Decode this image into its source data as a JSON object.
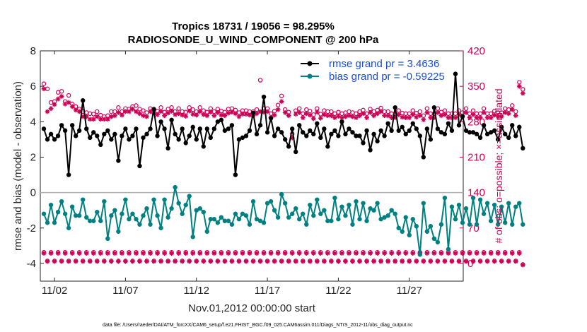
{
  "colors": {
    "rmse": "#000000",
    "bias": "#008080",
    "obs": "#cc0055",
    "legend_text": "#1a4fd6",
    "zero": "#b0b0b0"
  },
  "chart_data": {
    "type": "line",
    "title": "Tropics 18731 / 19056 = 98.295%",
    "subtitle": "RADIOSONDE_U_WIND_COMPONENT @ 200 hPa",
    "xlabel": "Nov.01,2012 00:00:00 start",
    "ylabel": "rmse and bias (model - observation)",
    "ylabel_right": "# of obs: o=possible; ×=assimilated",
    "footer": "data file: /Users/raeder/DAI/ATM_forcXX/CAM6_setup/f.e21.FHIST_BGC.f09_025.CAM6assim.011/Diags_NTrS_2012-11/obs_diag_output.nc",
    "xlim": [
      1,
      30.8
    ],
    "ylim": [
      -5,
      8
    ],
    "ylim_right": [
      -35,
      420
    ],
    "x_ticks": [
      {
        "value": 2,
        "label": "11/02"
      },
      {
        "value": 7,
        "label": "11/07"
      },
      {
        "value": 12,
        "label": "11/12"
      },
      {
        "value": 17,
        "label": "11/17"
      },
      {
        "value": 22,
        "label": "11/22"
      },
      {
        "value": 27,
        "label": "11/27"
      }
    ],
    "y_ticks": [
      8,
      6,
      4,
      2,
      0,
      -2,
      -4
    ],
    "y_ticks_right": [
      420,
      350,
      280,
      210,
      140,
      70,
      0
    ],
    "x_start": 1.25,
    "x_step": 0.25,
    "legend": [
      {
        "name": "rmse",
        "label": "rmse grand pr = 3.4636"
      },
      {
        "name": "bias",
        "label": "bias grand pr = -0.59225"
      }
    ],
    "series": [
      {
        "name": "rmse",
        "values": [
          3.6,
          3.0,
          3.3,
          3.0,
          3.2,
          3.8,
          3.5,
          1.0,
          3.8,
          3.2,
          3.5,
          5.2,
          3.6,
          3.1,
          3.4,
          3.2,
          2.7,
          3.3,
          3.5,
          3.0,
          3.3,
          1.8,
          3.2,
          3.6,
          3.0,
          3.2,
          3.6,
          1.5,
          3.1,
          3.3,
          3.6,
          4.7,
          3.2,
          4.0,
          3.6,
          2.5,
          4.1,
          3.3,
          3.0,
          3.6,
          2.8,
          3.2,
          3.7,
          3.0,
          3.6,
          2.6,
          3.6,
          3.1,
          3.6,
          4.0,
          4.1,
          3.5,
          3.6,
          3.8,
          1.0,
          3.0,
          3.1,
          3.2,
          3.5,
          4.5,
          3.3,
          3.8,
          5.4,
          3.4,
          4.2,
          3.2,
          3.6,
          3.4,
          3.0,
          2.6,
          3.6,
          2.3,
          3.8,
          3.4,
          3.2,
          3.5,
          3.3,
          3.9,
          3.1,
          3.6,
          2.6,
          3.3,
          3.5,
          3.2,
          4.0,
          3.3,
          3.6,
          3.4,
          3.2,
          3.2,
          2.8,
          3.5,
          2.4,
          3.3,
          2.9,
          3.5,
          3.2,
          3.9,
          3.5,
          4.8,
          3.5,
          3.7,
          3.3,
          3.5,
          3.9,
          3.6,
          3.2,
          2.0,
          3.6,
          3.0,
          4.8,
          3.6,
          3.4,
          3.3,
          3.9,
          3.5,
          6.7,
          3.8,
          4.3,
          3.5,
          3.4,
          3.4,
          3.3,
          3.1,
          3.8,
          3.3,
          3.4,
          3.5,
          3.0,
          3.7,
          3.3,
          3.1,
          3.8,
          3.2,
          3.7,
          2.5
        ]
      },
      {
        "name": "bias",
        "values": [
          -1.2,
          -1.7,
          -0.7,
          -1.7,
          -1.1,
          -0.5,
          -1.2,
          -2.0,
          -0.8,
          -1.3,
          -1.3,
          -0.4,
          -1.4,
          -1.6,
          -1.6,
          -1.1,
          -1.6,
          -0.5,
          -2.6,
          -1.3,
          -1.0,
          -2.2,
          -1.2,
          -0.4,
          -1.5,
          -1.2,
          -1.5,
          -1.8,
          -1.3,
          -0.9,
          -1.8,
          -0.4,
          -1.3,
          -2.0,
          -0.4,
          -1.4,
          -0.9,
          0.3,
          -0.6,
          -1.2,
          -0.7,
          -0.2,
          -2.5,
          -1.0,
          -0.9,
          -1.1,
          -2.2,
          -1.5,
          -1.5,
          -1.7,
          -1.4,
          -1.6,
          -1.6,
          -1.8,
          -1.2,
          -1.5,
          -1.2,
          -1.3,
          -1.8,
          -0.5,
          -1.5,
          -1.6,
          -1.7,
          -0.6,
          -0.5,
          -1.0,
          -1.4,
          -0.1,
          -0.6,
          -1.4,
          -1.2,
          -0.9,
          -1.5,
          -1.2,
          -1.8,
          -0.7,
          -1.3,
          -0.4,
          -1.2,
          -1.0,
          -1.6,
          -1.6,
          -0.3,
          -1.5,
          -0.8,
          -1.3,
          -0.7,
          -1.8,
          -0.5,
          -1.5,
          -0.6,
          -1.6,
          -0.9,
          -1.0,
          -0.6,
          -1.5,
          -1.4,
          -1.3,
          -1.0,
          -1.2,
          -2.0,
          -2.2,
          -1.4,
          -2.4,
          -1.5,
          -1.9,
          -3.5,
          -0.6,
          -2.2,
          -1.9,
          -2.6,
          -2.8,
          -1.8,
          -0.3,
          -3.2,
          -0.8,
          -1.5,
          -0.7,
          -1.7,
          -0.9,
          -1.8,
          -0.3,
          -1.8,
          -0.4,
          -1.2,
          -0.6,
          -1.6,
          -0.7,
          -1.8,
          -0.8,
          -1.7,
          -0.6,
          -1.8,
          -0.8,
          -0.6,
          -1.8
        ]
      },
      {
        "name": "obs_possible",
        "values": [
          355,
          345,
          318,
          320,
          338,
          340,
          320,
          332,
          315,
          310,
          305,
          300,
          298,
          296,
          295,
          300,
          293,
          290,
          292,
          300,
          300,
          308,
          300,
          306,
          305,
          310,
          312,
          305,
          302,
          298,
          306,
          305,
          301,
          308,
          299,
          305,
          308,
          300,
          306,
          300,
          299,
          308,
          304,
          300,
          308,
          302,
          299,
          306,
          300,
          305,
          301,
          299,
          305,
          306,
          303,
          298,
          302,
          302,
          300,
          300,
          304,
          362,
          307,
          306,
          296,
          301,
          313,
          331,
          304,
          299,
          256,
          302,
          306,
          296,
          304,
          301,
          294,
          306,
          295,
          302,
          300,
          300,
          296,
          299,
          296,
          298,
          300,
          298,
          296,
          300,
          303,
          296,
          305,
          300,
          303,
          307,
          300,
          300,
          296,
          296,
          302,
          297,
          296,
          296,
          302,
          297,
          300,
          292,
          306,
          296,
          296,
          306,
          299,
          302,
          296,
          296,
          296,
          302,
          298,
          306,
          296,
          302,
          296,
          296,
          306,
          296,
          296,
          301,
          298,
          298,
          306,
          304,
          312,
          300,
          358,
          344
        ]
      },
      {
        "name": "obs_assimilated",
        "values": [
          345,
          300,
          306,
          314,
          325,
          330,
          315,
          318,
          310,
          303,
          300,
          290,
          290,
          285,
          285,
          290,
          285,
          285,
          285,
          290,
          292,
          298,
          293,
          300,
          300,
          305,
          300,
          296,
          292,
          290,
          300,
          297,
          294,
          300,
          292,
          297,
          301,
          294,
          296,
          293,
          291,
          301,
          295,
          293,
          300,
          294,
          292,
          299,
          292,
          298,
          293,
          292,
          297,
          299,
          296,
          290,
          295,
          295,
          293,
          292,
          296,
          300,
          299,
          300,
          288,
          293,
          304,
          320,
          298,
          292,
          248,
          295,
          298,
          288,
          296,
          293,
          286,
          299,
          287,
          294,
          292,
          292,
          288,
          291,
          288,
          290,
          292,
          290,
          288,
          292,
          296,
          288,
          298,
          292,
          296,
          300,
          292,
          292,
          288,
          288,
          294,
          289,
          288,
          288,
          294,
          289,
          292,
          284,
          298,
          288,
          288,
          298,
          292,
          294,
          288,
          288,
          288,
          294,
          290,
          298,
          288,
          294,
          288,
          288,
          298,
          288,
          288,
          293,
          290,
          290,
          298,
          296,
          304,
          292,
          350,
          336
        ]
      },
      {
        "name": "obs_low_possible",
        "values": [
          22,
          5,
          22,
          5,
          22,
          5,
          22,
          5,
          22,
          5,
          22,
          5,
          22,
          5,
          22,
          5,
          22,
          5,
          22,
          5,
          22,
          5,
          22,
          5,
          22,
          5,
          22,
          5,
          22,
          5,
          22,
          5,
          22,
          5,
          22,
          5,
          22,
          5,
          22,
          5,
          22,
          5,
          22,
          5,
          22,
          5,
          22,
          5,
          22,
          5,
          22,
          5,
          22,
          5,
          22,
          5,
          22,
          5,
          22,
          5,
          22,
          5,
          22,
          5,
          22,
          5,
          22,
          5,
          22,
          5,
          22,
          5,
          22,
          5,
          22,
          5,
          22,
          5,
          22,
          5,
          22,
          5,
          22,
          5,
          22,
          5,
          22,
          5,
          22,
          5,
          22,
          5,
          22,
          5,
          22,
          5,
          22,
          5,
          22,
          5,
          22,
          5,
          22,
          5,
          22,
          5,
          22,
          5,
          22,
          5,
          22,
          5,
          22,
          5,
          22,
          5,
          22,
          5,
          22,
          5,
          22,
          5,
          22,
          5,
          22,
          5,
          22,
          5,
          22,
          5,
          22,
          5,
          22,
          5,
          22,
          -2
        ]
      },
      {
        "name": "obs_low_assimilated",
        "values": [
          20,
          4,
          20,
          4,
          20,
          4,
          20,
          4,
          20,
          4,
          20,
          4,
          20,
          4,
          20,
          4,
          20,
          4,
          20,
          4,
          20,
          4,
          20,
          4,
          20,
          4,
          20,
          4,
          20,
          4,
          20,
          4,
          20,
          4,
          20,
          4,
          20,
          4,
          20,
          4,
          20,
          4,
          20,
          4,
          20,
          4,
          20,
          4,
          20,
          4,
          20,
          4,
          20,
          4,
          20,
          4,
          20,
          4,
          20,
          4,
          20,
          4,
          20,
          4,
          20,
          4,
          20,
          4,
          20,
          4,
          20,
          4,
          20,
          4,
          20,
          4,
          20,
          4,
          20,
          4,
          20,
          4,
          20,
          4,
          20,
          4,
          20,
          4,
          20,
          4,
          20,
          4,
          20,
          4,
          20,
          4,
          20,
          4,
          20,
          4,
          20,
          4,
          20,
          4,
          20,
          4,
          20,
          4,
          20,
          4,
          20,
          4,
          20,
          4,
          20,
          4,
          20,
          4,
          20,
          4,
          20,
          4,
          20,
          4,
          20,
          4,
          20,
          4,
          20,
          4,
          20,
          4,
          20,
          4,
          20,
          -3
        ]
      }
    ]
  }
}
